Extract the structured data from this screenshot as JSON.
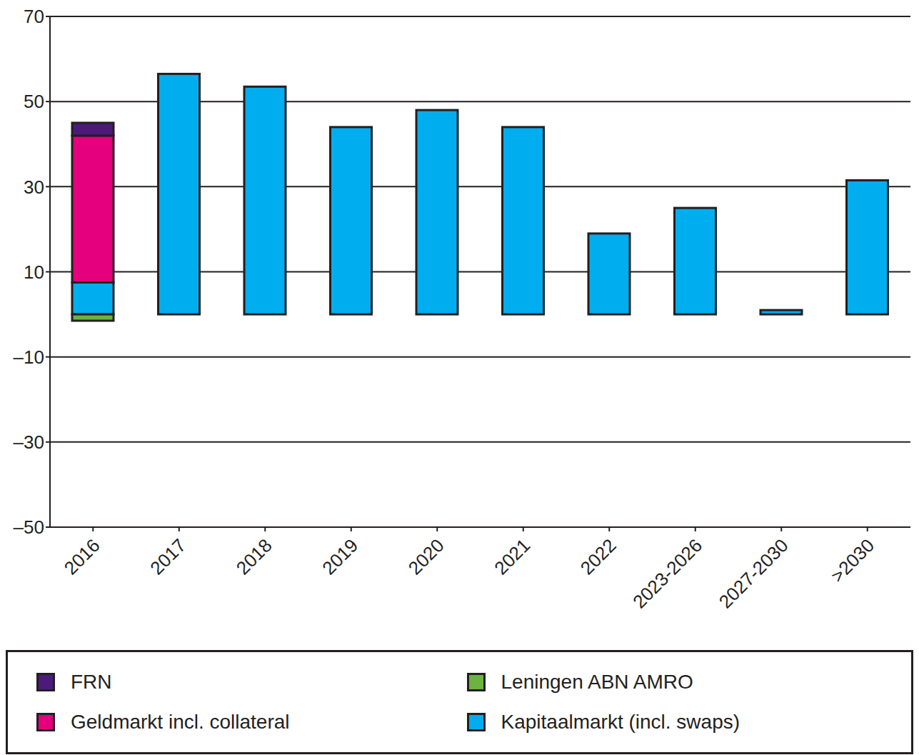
{
  "chart_data": {
    "type": "bar",
    "stacked": true,
    "grid": true,
    "categories": [
      "2016",
      "2017",
      "2018",
      "2019",
      "2020",
      "2021",
      "2022",
      "2023-2026",
      "2027-2030",
      ">2030"
    ],
    "ylim": [
      -50,
      70
    ],
    "yticks": [
      {
        "value": -50,
        "label": "–50"
      },
      {
        "value": -30,
        "label": "–30"
      },
      {
        "value": -10,
        "label": "–10"
      },
      10,
      30,
      50,
      70
    ],
    "series": [
      {
        "name": "FRN",
        "color": "#4b1a7a",
        "values": [
          3,
          null,
          null,
          null,
          null,
          null,
          null,
          null,
          null,
          null
        ]
      },
      {
        "name": "Leningen ABN AMRO",
        "color": "#6cb33f",
        "values": [
          -1.5,
          null,
          null,
          null,
          null,
          null,
          null,
          null,
          null,
          null
        ]
      },
      {
        "name": "Geldmarkt incl. collateral",
        "color": "#e5007d",
        "values": [
          34.5,
          null,
          null,
          null,
          null,
          null,
          null,
          null,
          null,
          null
        ]
      },
      {
        "name": "Kapitaalmarkt (incl. swaps)",
        "color": "#00aeef",
        "values": [
          7.5,
          56.5,
          53.5,
          44,
          48,
          44,
          19,
          25,
          1,
          31.5
        ]
      }
    ]
  }
}
